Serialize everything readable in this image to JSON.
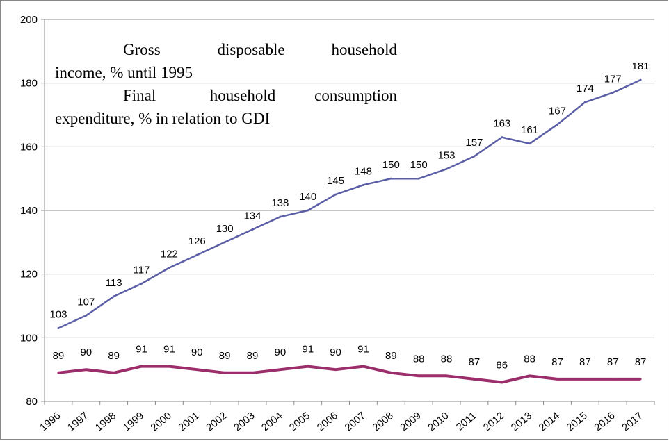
{
  "chart_data": {
    "type": "line",
    "categories": [
      "1996",
      "1997",
      "1998",
      "1999",
      "2000",
      "2001",
      "2002",
      "2003",
      "2004",
      "2005",
      "2006",
      "2007",
      "2008",
      "2009",
      "2010",
      "2011",
      "2012",
      "2013",
      "2014",
      "2015",
      "2016",
      "2017"
    ],
    "series": [
      {
        "name": "Gross disposable household income, % until 1995",
        "color": "#5b5ea6",
        "values": [
          103,
          107,
          113,
          117,
          122,
          126,
          130,
          134,
          138,
          140,
          145,
          148,
          150,
          150,
          153,
          157,
          163,
          161,
          167,
          174,
          177,
          181
        ],
        "labels": [
          "103",
          "107",
          "113",
          "117",
          "122",
          "126",
          "130",
          "134",
          "138",
          "140",
          "145",
          "148",
          "150",
          "150",
          "153",
          "157",
          "163",
          "161",
          "167",
          "174",
          "177",
          "181"
        ]
      },
      {
        "name": "Final household consumption expenditure, % in relation to GDI",
        "color": "#9b2d6b",
        "values": [
          89,
          90,
          89,
          91,
          91,
          90,
          89,
          89,
          90,
          91,
          90,
          91,
          89,
          88,
          88,
          87,
          86,
          88,
          87,
          87,
          87,
          87
        ],
        "labels": [
          "89",
          "90",
          "89",
          "91",
          "91",
          "90",
          "89",
          "89",
          "90",
          "91",
          "90",
          "91",
          "89",
          "88",
          "88",
          "87",
          "86",
          "88",
          "87",
          "87",
          "87",
          "87"
        ]
      }
    ],
    "ylim": [
      80,
      200
    ],
    "yticks": [
      "80",
      "100",
      "120",
      "140",
      "160",
      "180",
      "200"
    ],
    "grid": true,
    "legend_position": "top-left",
    "legend_lines": [
      [
        "Gross",
        "disposable",
        "household"
      ],
      [
        "income, % until 1995"
      ],
      [
        "Final",
        "household",
        "consumption"
      ],
      [
        "expenditure, % in relation to GDI"
      ]
    ]
  }
}
